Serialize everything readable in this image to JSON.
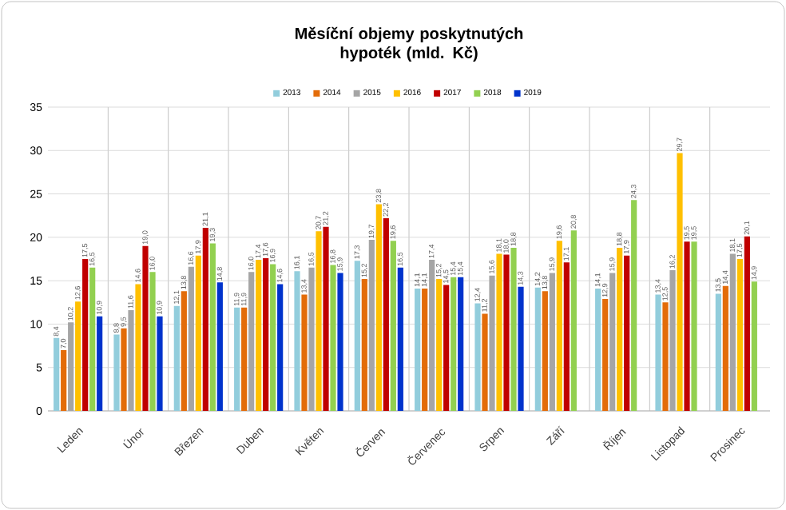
{
  "chart_data": {
    "type": "bar",
    "title": "Měsíční objemy poskytnutých hypoték (mld. Kč)",
    "categories": [
      "Leden",
      "Únor",
      "Březen",
      "Duben",
      "Květen",
      "Červen",
      "Červenec",
      "Srpen",
      "Září",
      "Říjen",
      "Listopad",
      "Prosinec"
    ],
    "series": [
      {
        "name": "2013",
        "color": "#92cddc",
        "values": [
          8.4,
          8.8,
          12.1,
          11.9,
          16.1,
          17.3,
          14.1,
          12.4,
          14.2,
          14.1,
          13.4,
          13.5
        ],
        "value_labels": [
          "8,4",
          "8,8",
          "12,1",
          "11,9",
          "16,1",
          "17,3",
          "14,1",
          "12,4",
          "14,2",
          "14,1",
          "13,4",
          "13,5"
        ]
      },
      {
        "name": "2014",
        "color": "#e36c09",
        "values": [
          7.0,
          9.5,
          13.8,
          11.9,
          13.4,
          15.2,
          14.1,
          11.2,
          13.8,
          12.9,
          12.5,
          14.4
        ],
        "value_labels": [
          "7,0",
          "9,5",
          "13,8",
          "11,9",
          "13,4",
          "15,2",
          "14,1",
          "11,2",
          "13,8",
          "12,9",
          "12,5",
          "14,4"
        ]
      },
      {
        "name": "2015",
        "color": "#a5a5a5",
        "values": [
          10.2,
          11.6,
          16.6,
          16.0,
          16.5,
          19.7,
          17.4,
          15.6,
          15.9,
          15.9,
          16.2,
          18.1
        ],
        "value_labels": [
          "10,2",
          "11,6",
          "16,6",
          "16,0",
          "16,5",
          "19,7",
          "17,4",
          "15,6",
          "15,9",
          "15,9",
          "16,2",
          "18,1"
        ]
      },
      {
        "name": "2016",
        "color": "#ffc000",
        "values": [
          12.6,
          14.6,
          17.9,
          17.4,
          20.7,
          23.8,
          15.2,
          18.1,
          19.6,
          18.8,
          29.7,
          17.5
        ],
        "value_labels": [
          "12,6",
          "14,6",
          "17,9",
          "17,4",
          "20,7",
          "23,8",
          "15,2",
          "18,1",
          "19,6",
          "18,8",
          "29,7",
          "17,5"
        ]
      },
      {
        "name": "2017",
        "color": "#c00000",
        "values": [
          17.5,
          19.0,
          21.1,
          17.6,
          21.2,
          22.2,
          14.5,
          18.0,
          17.1,
          17.9,
          19.5,
          20.1
        ],
        "value_labels": [
          "17,5",
          "19,0",
          "21,1",
          "17,6",
          "21,2",
          "22,2",
          "14,5",
          "18,0",
          "17,1",
          "17,9",
          "19,5",
          "20,1"
        ]
      },
      {
        "name": "2018",
        "color": "#92d050",
        "values": [
          16.5,
          16.0,
          19.3,
          16.9,
          16.8,
          19.6,
          15.4,
          18.8,
          20.8,
          24.3,
          19.5,
          14.9
        ],
        "value_labels": [
          "16,5",
          "16,0",
          "19,3",
          "16,9",
          "16,8",
          "19,6",
          "15,4",
          "18,8",
          "20,8",
          "24,3",
          "19,5",
          "14,9"
        ]
      },
      {
        "name": "2019",
        "color": "#0033cc",
        "values": [
          10.9,
          10.9,
          14.8,
          14.6,
          15.9,
          16.5,
          15.4,
          14.3,
          null,
          null,
          null,
          null
        ],
        "value_labels": [
          "10,9",
          "10,9",
          "14,8",
          "14,6",
          "15,9",
          "16,5",
          "15,4",
          "14,3",
          null,
          null,
          null,
          null
        ]
      }
    ],
    "ylim": [
      0,
      35
    ],
    "yticks": [
      0,
      5,
      10,
      15,
      20,
      25,
      30,
      35
    ],
    "grid": true,
    "legend": "top"
  }
}
